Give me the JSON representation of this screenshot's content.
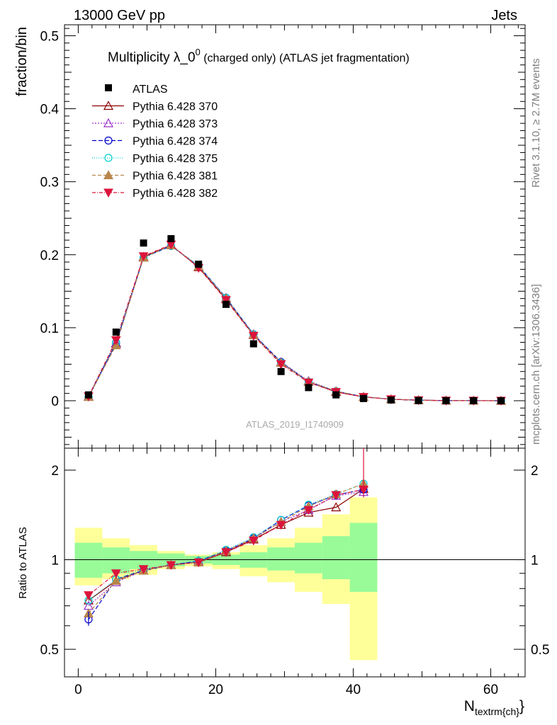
{
  "header": {
    "left": "13000 GeV pp",
    "right": "Jets"
  },
  "title": {
    "main": "Multiplicity λ_0",
    "sup": "0",
    "sub": " (charged only) (ATLAS jet fragmentation)"
  },
  "side_labels": {
    "rivet": "Rivet 3.1.10, ≥ 2.7M events",
    "mcplots": "mcplots.cern.ch [arXiv:1306.3436]"
  },
  "watermark": "ATLAS_2019_I1740909",
  "colors": {
    "data": "#000000",
    "s370": "#8b0000",
    "s373": "#9932cc",
    "s374": "#0000cd",
    "s375": "#00ced1",
    "s381": "#b8864b",
    "s382": "#dc143c",
    "band_inner": "#98fb98",
    "band_outer": "#ffff99"
  },
  "chart_data": {
    "type": "line",
    "main": {
      "ylabel": "fraction/bin",
      "ylim": [
        -0.065,
        0.515
      ],
      "yticks": [
        0,
        0.1,
        0.2,
        0.3,
        0.4,
        0.5
      ],
      "ytick_labels": [
        "0",
        "0.1",
        "0.2",
        "0.3",
        "0.4",
        "0.5"
      ]
    },
    "ratio": {
      "ylabel": "Ratio to ATLAS",
      "yticks": [
        0.5,
        1,
        2
      ],
      "ytick_labels": [
        "0.5",
        "1",
        "2"
      ]
    },
    "x": {
      "label": "N",
      "label_sub": "textrm{ch}",
      "label_close": "}",
      "xlim": [
        -2,
        65
      ],
      "xticks": [
        0,
        20,
        40,
        60
      ],
      "xtick_labels": [
        "0",
        "20",
        "40",
        "60"
      ]
    },
    "data": {
      "name": "ATLAS",
      "x": [
        1.5,
        5.5,
        9.5,
        13.5,
        17.5,
        21.5,
        25.5,
        29.5,
        33.5,
        37.5,
        41.5,
        45.5,
        49.5,
        53.5,
        57.5,
        61.5
      ],
      "y": [
        0.008,
        0.094,
        0.216,
        0.222,
        0.187,
        0.132,
        0.078,
        0.04,
        0.018,
        0.008,
        0.003,
        0.001,
        0.0003,
        0.0001,
        5e-05,
        2e-05
      ]
    },
    "series": [
      {
        "key": "s370",
        "name": "Pythia 6.428 370",
        "marker": "tri-up-open",
        "dash": "",
        "y": [
          0.0058,
          0.079,
          0.197,
          0.213,
          0.183,
          0.139,
          0.09,
          0.052,
          0.026,
          0.012,
          0.0052,
          0.002,
          0.0007,
          0.0002,
          5e-05,
          1e-05
        ],
        "ratio": [
          0.73,
          0.85,
          0.92,
          0.96,
          0.98,
          1.06,
          1.17,
          1.31,
          1.44,
          1.5,
          1.73
        ]
      },
      {
        "key": "s373",
        "name": "Pythia 6.428 373",
        "marker": "tri-up-open",
        "dash": "2,2",
        "y": [
          0.0055,
          0.078,
          0.196,
          0.213,
          0.184,
          0.141,
          0.091,
          0.053,
          0.027,
          0.013,
          0.0054,
          0.002,
          0.0007,
          0.0002,
          5e-05,
          1e-05
        ],
        "ratio": [
          0.7,
          0.84,
          0.92,
          0.96,
          0.99,
          1.07,
          1.18,
          1.34,
          1.47,
          1.64,
          1.69
        ]
      },
      {
        "key": "s374",
        "name": "Pythia 6.428 374",
        "marker": "circle-open",
        "dash": "6,3",
        "y": [
          0.005,
          0.079,
          0.196,
          0.212,
          0.185,
          0.141,
          0.091,
          0.053,
          0.026,
          0.013,
          0.0054,
          0.002,
          0.0007,
          0.0002,
          5e-05,
          1e-05
        ],
        "ratio": [
          0.63,
          0.86,
          0.92,
          0.96,
          0.99,
          1.07,
          1.18,
          1.36,
          1.52,
          1.65,
          1.72
        ]
      },
      {
        "key": "s375",
        "name": "Pythia 6.428 375",
        "marker": "circle-open",
        "dash": "1,2",
        "y": [
          0.0056,
          0.08,
          0.196,
          0.212,
          0.185,
          0.141,
          0.091,
          0.052,
          0.026,
          0.013,
          0.0054,
          0.002,
          0.0007,
          0.0002,
          5e-05,
          1e-05
        ],
        "ratio": [
          0.73,
          0.86,
          0.93,
          0.96,
          0.99,
          1.08,
          1.19,
          1.36,
          1.53,
          1.66,
          1.8
        ]
      },
      {
        "key": "s381",
        "name": "Pythia 6.428 381",
        "marker": "tri-up-filled",
        "dash": "5,3",
        "y": [
          0.0052,
          0.076,
          0.196,
          0.213,
          0.184,
          0.14,
          0.09,
          0.052,
          0.026,
          0.013,
          0.0053,
          0.002,
          0.0007,
          0.0002,
          5e-05,
          1e-05
        ],
        "ratio": [
          0.66,
          0.85,
          0.92,
          0.96,
          0.98,
          1.07,
          1.18,
          1.34,
          1.51,
          1.66,
          1.8
        ]
      },
      {
        "key": "s382",
        "name": "Pythia 6.428 382",
        "marker": "tri-down-filled",
        "dash": "5,2,1,2",
        "y": [
          0.006,
          0.083,
          0.198,
          0.214,
          0.182,
          0.138,
          0.089,
          0.05,
          0.025,
          0.012,
          0.0052,
          0.002,
          0.0007,
          0.0002,
          5e-05,
          1e-05
        ],
        "ratio": [
          0.76,
          0.9,
          0.93,
          0.96,
          0.98,
          1.06,
          1.16,
          1.31,
          1.47,
          1.65,
          1.72
        ]
      }
    ],
    "bands": {
      "x_edges": [
        -0.5,
        3.5,
        7.5,
        11.5,
        15.5,
        19.5,
        23.5,
        27.5,
        31.5,
        35.5,
        39.5,
        43.5
      ],
      "inner": [
        [
          0.87,
          1.14
        ],
        [
          0.9,
          1.1
        ],
        [
          0.93,
          1.07
        ],
        [
          0.95,
          1.05
        ],
        [
          0.97,
          1.03
        ],
        [
          0.96,
          1.04
        ],
        [
          0.94,
          1.06
        ],
        [
          0.92,
          1.1
        ],
        [
          0.9,
          1.14
        ],
        [
          0.86,
          1.2
        ],
        [
          0.78,
          1.33
        ]
      ],
      "outer": [
        [
          0.82,
          1.28
        ],
        [
          0.86,
          1.18
        ],
        [
          0.89,
          1.12
        ],
        [
          0.93,
          1.07
        ],
        [
          0.95,
          1.04
        ],
        [
          0.93,
          1.06
        ],
        [
          0.88,
          1.12
        ],
        [
          0.84,
          1.18
        ],
        [
          0.78,
          1.28
        ],
        [
          0.71,
          1.42
        ],
        [
          0.46,
          1.62
        ]
      ]
    }
  }
}
